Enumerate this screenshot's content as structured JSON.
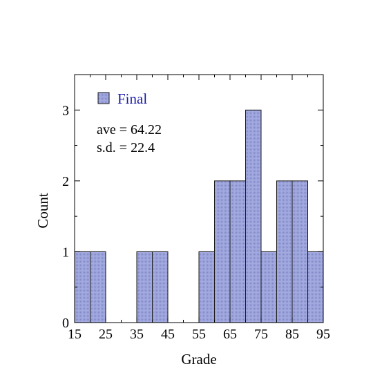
{
  "chart_data": {
    "type": "bar",
    "xlabel": "Grade",
    "ylabel": "Count",
    "xlim": [
      15,
      95
    ],
    "ylim": [
      0,
      3.5
    ],
    "bin_width": 5,
    "bins": [
      {
        "start": 15,
        "end": 20,
        "count": 1
      },
      {
        "start": 20,
        "end": 25,
        "count": 1
      },
      {
        "start": 25,
        "end": 30,
        "count": 0
      },
      {
        "start": 30,
        "end": 35,
        "count": 0
      },
      {
        "start": 35,
        "end": 40,
        "count": 1
      },
      {
        "start": 40,
        "end": 45,
        "count": 1
      },
      {
        "start": 45,
        "end": 50,
        "count": 0
      },
      {
        "start": 50,
        "end": 55,
        "count": 0
      },
      {
        "start": 55,
        "end": 60,
        "count": 1
      },
      {
        "start": 60,
        "end": 65,
        "count": 2
      },
      {
        "start": 65,
        "end": 70,
        "count": 2
      },
      {
        "start": 70,
        "end": 75,
        "count": 3
      },
      {
        "start": 75,
        "end": 80,
        "count": 1
      },
      {
        "start": 80,
        "end": 85,
        "count": 2
      },
      {
        "start": 85,
        "end": 90,
        "count": 2
      },
      {
        "start": 90,
        "end": 95,
        "count": 1
      }
    ],
    "x_ticks": [
      "15",
      "25",
      "35",
      "45",
      "55",
      "65",
      "75",
      "85",
      "95"
    ],
    "x_tick_values": [
      15,
      25,
      35,
      45,
      55,
      65,
      75,
      85,
      95
    ],
    "y_ticks": [
      "0",
      "1",
      "2",
      "3"
    ],
    "y_tick_values": [
      0,
      1,
      2,
      3
    ],
    "legend": {
      "label": "Final",
      "placement": "top-left"
    },
    "annotations": {
      "average": "ave = 64.22",
      "std_dev": "s.d. = 22.4"
    },
    "grid": false,
    "colors": {
      "bar_fill": "#9fa6dc",
      "bar_stroke": "#1a1a1a",
      "legend_text": "#1a1aa8",
      "axis": "#000000"
    }
  }
}
